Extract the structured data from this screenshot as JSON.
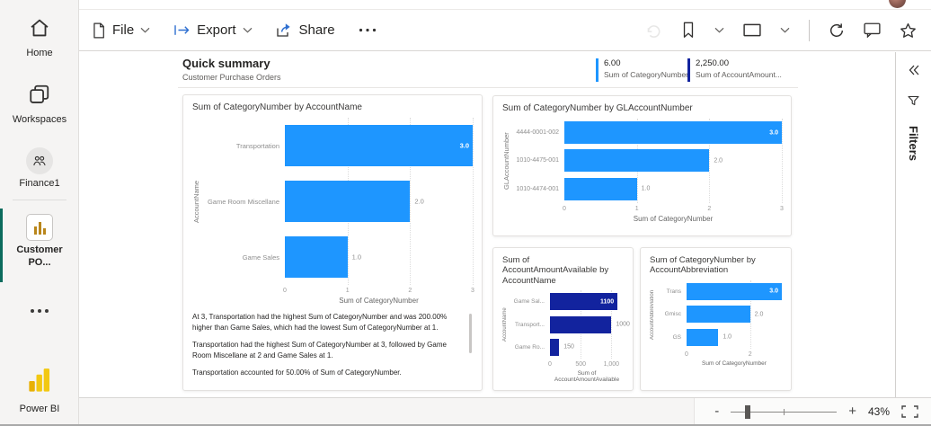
{
  "colors": {
    "bar_blue": "#1e96ff",
    "bar_navy": "#12239e",
    "nav_selected_teal": "#0c6b5d",
    "brand_yellow": "#f2c811"
  },
  "sidebar": {
    "items": [
      {
        "label": "Home"
      },
      {
        "label": "Workspaces"
      },
      {
        "label": "Finance1"
      },
      {
        "label": "Customer PO..."
      }
    ],
    "logo_label": "Power BI"
  },
  "toolbar": {
    "file_label": "File",
    "export_label": "Export",
    "share_label": "Share"
  },
  "report": {
    "title": "Quick summary",
    "subtitle": "Customer Purchase Orders",
    "kpis": [
      {
        "value": "6.00",
        "label": "Sum of CategoryNumber",
        "accent": "#1e96ff"
      },
      {
        "value": "2,250.00",
        "label": "Sum of AccountAmount...",
        "accent": "#12239e"
      }
    ]
  },
  "filters_pane": {
    "label": "Filters"
  },
  "narrative": {
    "paragraphs": [
      "At 3, Transportation had the highest Sum of CategoryNumber and was 200.00% higher than Game Sales, which had the lowest Sum of CategoryNumber at 1.",
      "Transportation had the highest Sum of CategoryNumber at 3, followed by Game Room Miscellane at 2 and Game Sales at 1.",
      "Transportation accounted for 50.00% of Sum of CategoryNumber."
    ]
  },
  "status_bar": {
    "zoom_out": "-",
    "zoom_in": "+",
    "zoom_level": "43%"
  },
  "chart_data": [
    {
      "type": "bar",
      "orientation": "horizontal",
      "title": "Sum of CategoryNumber by AccountName",
      "xlabel": "Sum of CategoryNumber",
      "ylabel": "AccountName",
      "categories": [
        "Transportation",
        "Game Room Miscellane",
        "Game Sales"
      ],
      "values": [
        3,
        2,
        1
      ],
      "value_labels": [
        "3.0",
        "2.0",
        "1.0"
      ],
      "bar_color": "#1e96ff",
      "axis_max": 3,
      "ticks": [
        {
          "v": 0,
          "label": "0"
        },
        {
          "v": 1,
          "label": "1"
        },
        {
          "v": 2,
          "label": "2"
        },
        {
          "v": 3,
          "label": "3"
        }
      ]
    },
    {
      "type": "bar",
      "orientation": "horizontal",
      "title": "Sum of CategoryNumber by GLAccountNumber",
      "xlabel": "Sum of CategoryNumber",
      "ylabel": "GLAccountNumber",
      "categories": [
        "4444-0001-002",
        "1010-4475-001",
        "1010-4474-001"
      ],
      "values": [
        3,
        2,
        1
      ],
      "value_labels": [
        "3.0",
        "2.0",
        "1.0"
      ],
      "bar_color": "#1e96ff",
      "axis_max": 3,
      "ticks": [
        {
          "v": 0,
          "label": "0"
        },
        {
          "v": 1,
          "label": "1"
        },
        {
          "v": 2,
          "label": "2"
        },
        {
          "v": 3,
          "label": "3"
        }
      ]
    },
    {
      "type": "bar",
      "orientation": "horizontal",
      "title": "Sum of AccountAmountAvailable by AccountName",
      "xlabel": "Sum of AccountAmountAvailable",
      "ylabel": "AccountName",
      "categories": [
        "Game Sal...",
        "Transport...",
        "Game Ro..."
      ],
      "values": [
        1100,
        1000,
        150
      ],
      "value_labels": [
        "1100",
        "1000",
        "150"
      ],
      "bar_color": "#12239e",
      "axis_max": 1200,
      "ticks": [
        {
          "v": 0,
          "label": "0"
        },
        {
          "v": 500,
          "label": "500"
        },
        {
          "v": 1000,
          "label": "1,000"
        }
      ]
    },
    {
      "type": "bar",
      "orientation": "horizontal",
      "title": "Sum of CategoryNumber by AccountAbbreviation",
      "xlabel": "Sum of CategoryNumber",
      "ylabel": "AccountAbbreviation",
      "categories": [
        "Trans",
        "Gmisc",
        "GS"
      ],
      "values": [
        3,
        2,
        1
      ],
      "value_labels": [
        "3.0",
        "2.0",
        "1.0"
      ],
      "bar_color": "#1e96ff",
      "axis_max": 3,
      "ticks": [
        {
          "v": 0,
          "label": "0"
        },
        {
          "v": 2,
          "label": "2"
        }
      ]
    }
  ]
}
